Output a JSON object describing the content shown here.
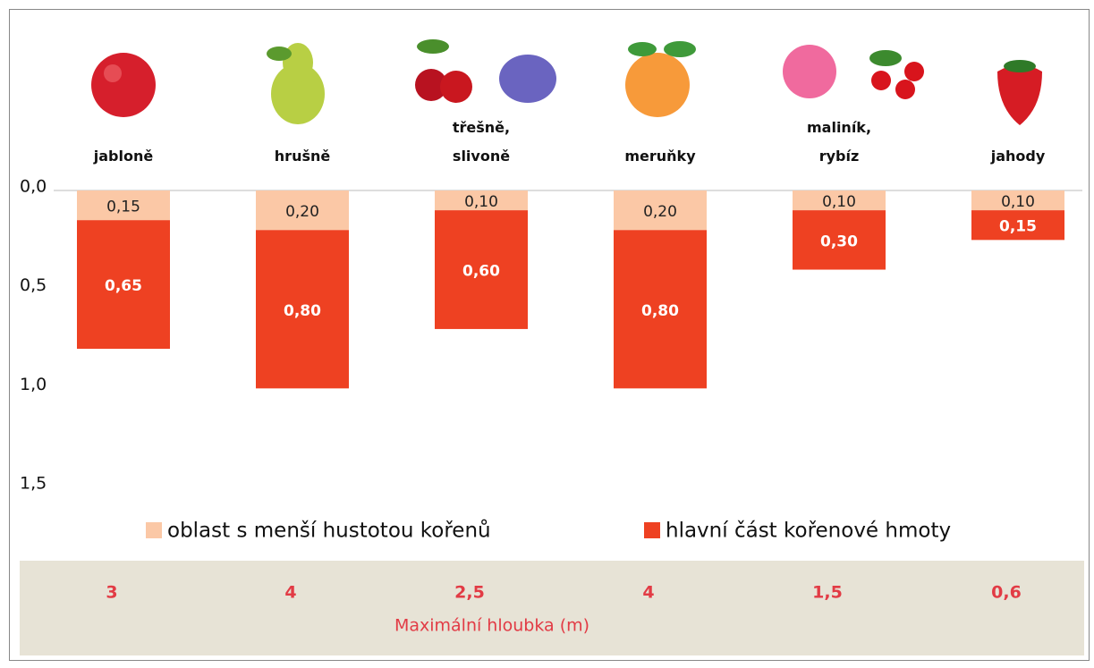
{
  "chart_data": {
    "type": "stacked_bar",
    "inverted_y": true,
    "categories": [
      "jabloně",
      "hrušně",
      "třešně,\nslivoně",
      "meruňky",
      "maliník,\nrybíz",
      "jahody"
    ],
    "series": [
      {
        "name": "oblast s menší hustotou kořenů",
        "color": "#fbc8a6",
        "values": [
          0.15,
          0.2,
          0.1,
          0.2,
          0.1,
          0.1
        ],
        "value_labels": [
          "0,15",
          "0,20",
          "0,10",
          "0,20",
          "0,10",
          "0,10"
        ]
      },
      {
        "name": "hlavní část kořenové hmoty",
        "color": "#ee4122",
        "values": [
          0.65,
          0.8,
          0.6,
          0.8,
          0.3,
          0.15
        ],
        "value_labels": [
          "0,65",
          "0,80",
          "0,60",
          "0,80",
          "0,30",
          "0,15"
        ]
      }
    ],
    "ylim": [
      0,
      1.5
    ],
    "yticks": [
      {
        "value": 0,
        "label": "0,0"
      },
      {
        "value": 0.5,
        "label": "0,5"
      },
      {
        "value": 1,
        "label": "1,0"
      },
      {
        "value": 1.5,
        "label": "1,5"
      }
    ]
  },
  "footer": {
    "values": [
      "3",
      "4",
      "2,5",
      "4",
      "1,5",
      "0,6"
    ],
    "label": "Maximální hloubka (m)"
  }
}
